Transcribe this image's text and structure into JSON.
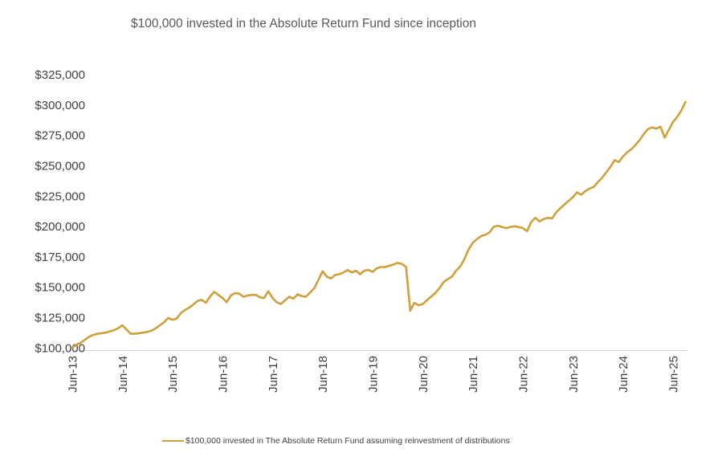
{
  "title": "$100,000 invested in the Absolute Return Fund since inception",
  "legend": {
    "label": "$100,000 invested in The Absolute Return Fund assuming reinvestment of distributions"
  },
  "colors": {
    "line": "#CEA03C",
    "title_text": "#595959",
    "axis_text": "#404040",
    "axis_line": "#D9D9D9",
    "background": "#FFFFFF"
  },
  "y_axis": {
    "tick_labels": [
      "$325,000",
      "$300,000",
      "$275,000",
      "$250,000",
      "$225,000",
      "$200,000",
      "$175,000",
      "$150,000",
      "$125,000",
      "$100,000"
    ],
    "min": 100000,
    "max": 325000,
    "step": 25000
  },
  "x_axis": {
    "tick_labels": [
      "Jun-13",
      "Jun-14",
      "Jun-15",
      "Jun-16",
      "Jun-17",
      "Jun-18",
      "Jun-19",
      "Jun-20",
      "Jun-21",
      "Jun-22",
      "Jun-23",
      "Jun-24",
      "Jun-25"
    ]
  },
  "chart_data": {
    "type": "line",
    "title": "$100,000 invested in the Absolute Return Fund since inception",
    "series_name": "$100,000 invested in The Absolute Return Fund assuming reinvestment of distributions",
    "xlabel": "",
    "ylabel": "",
    "ylim": [
      100000,
      325000
    ],
    "grid": false,
    "legend_position": "bottom",
    "values_unit": "USD thousands",
    "x": [
      "Jun-13",
      "Jul-13",
      "Aug-13",
      "Sep-13",
      "Oct-13",
      "Nov-13",
      "Dec-13",
      "Jan-14",
      "Feb-14",
      "Mar-14",
      "Apr-14",
      "May-14",
      "Jun-14",
      "Jul-14",
      "Aug-14",
      "Sep-14",
      "Oct-14",
      "Nov-14",
      "Dec-14",
      "Jan-15",
      "Feb-15",
      "Mar-15",
      "Apr-15",
      "May-15",
      "Jun-15",
      "Jul-15",
      "Aug-15",
      "Sep-15",
      "Oct-15",
      "Nov-15",
      "Dec-15",
      "Jan-16",
      "Feb-16",
      "Mar-16",
      "Apr-16",
      "May-16",
      "Jun-16",
      "Jul-16",
      "Aug-16",
      "Sep-16",
      "Oct-16",
      "Nov-16",
      "Dec-16",
      "Jan-17",
      "Feb-17",
      "Mar-17",
      "Apr-17",
      "May-17",
      "Jun-17",
      "Jul-17",
      "Aug-17",
      "Sep-17",
      "Oct-17",
      "Nov-17",
      "Dec-17",
      "Jan-18",
      "Feb-18",
      "Mar-18",
      "Apr-18",
      "May-18",
      "Jun-18",
      "Jul-18",
      "Aug-18",
      "Sep-18",
      "Oct-18",
      "Nov-18",
      "Dec-18",
      "Jan-19",
      "Feb-19",
      "Mar-19",
      "Apr-19",
      "May-19",
      "Jun-19",
      "Jul-19",
      "Aug-19",
      "Sep-19",
      "Oct-19",
      "Nov-19",
      "Dec-19",
      "Jan-20",
      "Feb-20",
      "Mar-20",
      "Apr-20",
      "May-20",
      "Jun-20",
      "Jul-20",
      "Aug-20",
      "Sep-20",
      "Oct-20",
      "Nov-20",
      "Dec-20",
      "Jan-21",
      "Feb-21",
      "Mar-21",
      "Apr-21",
      "May-21",
      "Jun-21",
      "Jul-21",
      "Aug-21",
      "Sep-21",
      "Oct-21",
      "Nov-21",
      "Dec-21",
      "Jan-22",
      "Feb-22",
      "Mar-22",
      "Apr-22",
      "May-22",
      "Jun-22",
      "Jul-22",
      "Aug-22",
      "Sep-22",
      "Oct-22",
      "Nov-22",
      "Dec-22",
      "Jan-23",
      "Feb-23",
      "Mar-23",
      "Apr-23",
      "May-23",
      "Jun-23",
      "Jul-23",
      "Aug-23",
      "Sep-23",
      "Oct-23",
      "Nov-23",
      "Dec-23",
      "Jan-24",
      "Feb-24",
      "Mar-24",
      "Apr-24",
      "May-24",
      "Jun-24",
      "Jul-24",
      "Aug-24",
      "Sep-24",
      "Oct-24",
      "Nov-24",
      "Dec-24",
      "Jan-25",
      "Feb-25",
      "Mar-25",
      "Apr-25",
      "May-25",
      "Jun-25",
      "Jul-25",
      "Aug-25",
      "Sep-25"
    ],
    "values": [
      100.0,
      102.5,
      104.0,
      106.5,
      109.0,
      110.5,
      111.5,
      112.0,
      112.5,
      113.5,
      114.5,
      116.0,
      118.5,
      115.0,
      111.5,
      111.5,
      112.0,
      112.5,
      113.0,
      114.0,
      116.0,
      118.5,
      121.0,
      124.5,
      123.0,
      124.0,
      128.5,
      131.0,
      133.0,
      135.5,
      138.5,
      139.5,
      137.0,
      142.0,
      146.0,
      143.5,
      141.0,
      137.5,
      143.0,
      145.0,
      144.5,
      142.0,
      143.0,
      143.5,
      143.5,
      141.5,
      141.0,
      146.5,
      141.0,
      137.5,
      136.0,
      139.0,
      142.0,
      140.5,
      144.0,
      142.5,
      142.0,
      145.5,
      149.0,
      156.0,
      163.0,
      158.5,
      157.0,
      160.0,
      160.5,
      162.0,
      164.0,
      162.0,
      163.5,
      160.5,
      163.5,
      164.0,
      162.5,
      165.5,
      166.5,
      166.5,
      167.5,
      168.5,
      170.0,
      169.0,
      166.5,
      130.5,
      137.0,
      135.0,
      136.0,
      139.0,
      142.0,
      145.0,
      149.0,
      154.0,
      156.5,
      158.5,
      163.5,
      167.0,
      173.0,
      181.0,
      186.5,
      189.5,
      192.0,
      193.0,
      195.0,
      199.5,
      200.5,
      199.5,
      198.5,
      199.5,
      200.0,
      199.5,
      198.5,
      196.0,
      203.5,
      207.0,
      204.0,
      206.0,
      207.0,
      206.5,
      211.5,
      215.0,
      218.0,
      221.0,
      224.0,
      228.0,
      226.0,
      229.0,
      231.0,
      232.5,
      236.5,
      240.0,
      244.5,
      249.0,
      254.5,
      253.0,
      257.5,
      261.0,
      263.5,
      267.0,
      271.0,
      276.0,
      280.0,
      281.5,
      280.5,
      282.0,
      273.0,
      279.5,
      286.0,
      290.0,
      295.5,
      302.5
    ]
  }
}
